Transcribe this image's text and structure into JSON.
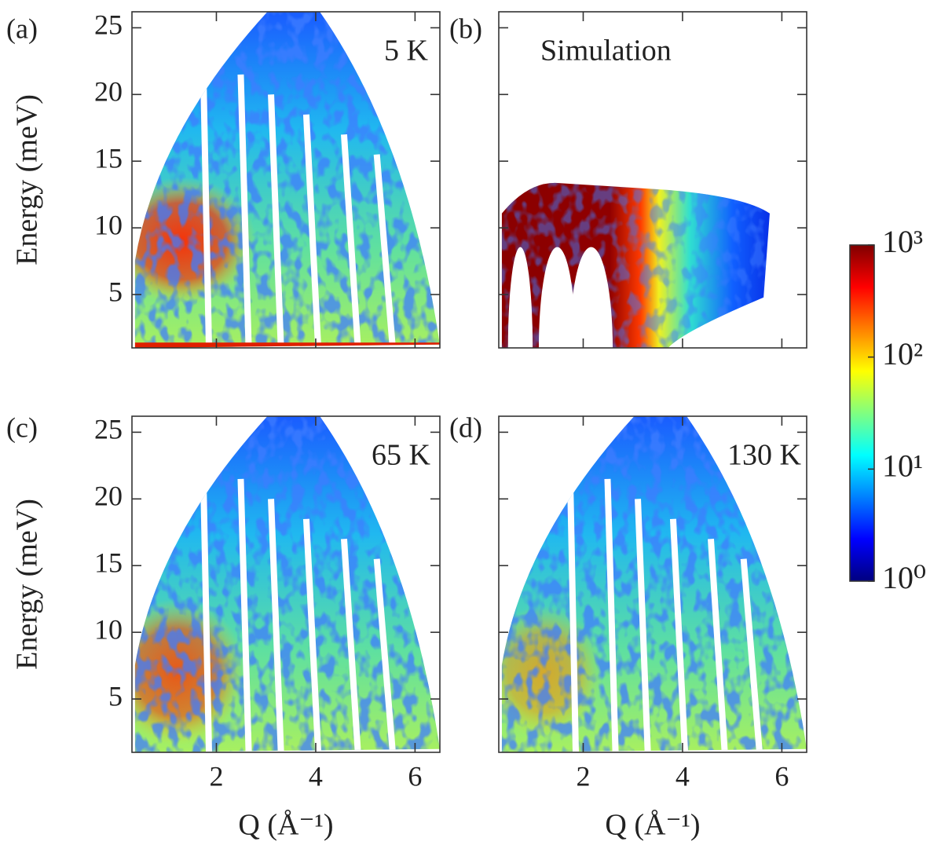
{
  "chart_data": [
    {
      "type": "heatmap",
      "panel_label": "(a)",
      "annotation": "5 K",
      "ylabel": "Energy (meV)",
      "xlim": [
        0.3,
        6.5
      ],
      "ylim": [
        1,
        26.2
      ],
      "xticks": [
        2,
        4,
        6
      ],
      "yticks": [
        5,
        10,
        15,
        20,
        25
      ]
    },
    {
      "type": "heatmap",
      "panel_label": "(b)",
      "annotation": "Simulation",
      "xlim": [
        0.3,
        6.5
      ],
      "ylim": [
        1,
        26.2
      ],
      "xticks": [
        2,
        4,
        6
      ],
      "yticks": [
        5,
        10,
        15,
        20,
        25
      ]
    },
    {
      "type": "heatmap",
      "panel_label": "(c)",
      "annotation": "65 K",
      "ylabel": "Energy (meV)",
      "xlabel": "Q (Å⁻¹)",
      "xlim": [
        0.3,
        6.5
      ],
      "ylim": [
        1,
        26.2
      ],
      "xticks": [
        2,
        4,
        6
      ],
      "yticks": [
        5,
        10,
        15,
        20,
        25
      ]
    },
    {
      "type": "heatmap",
      "panel_label": "(d)",
      "annotation": "130 K",
      "xlabel": "Q (Å⁻¹)",
      "xlim": [
        0.3,
        6.5
      ],
      "ylim": [
        1,
        26.2
      ],
      "xticks": [
        2,
        4,
        6
      ],
      "yticks": [
        5,
        10,
        15,
        20,
        25
      ]
    },
    {
      "type": "colorbar",
      "log": true,
      "ylim": [
        1,
        1000
      ],
      "yticks": [
        {
          "value": 1,
          "label": "10⁰"
        },
        {
          "value": 10,
          "label": "10¹"
        },
        {
          "value": 100,
          "label": "10²"
        },
        {
          "value": 1000,
          "label": "10³"
        }
      ],
      "colors": [
        "#00007f",
        "#0000ff",
        "#0080ff",
        "#00ffff",
        "#80ff80",
        "#ffff00",
        "#ff8000",
        "#ff0000",
        "#7f0000"
      ]
    }
  ]
}
